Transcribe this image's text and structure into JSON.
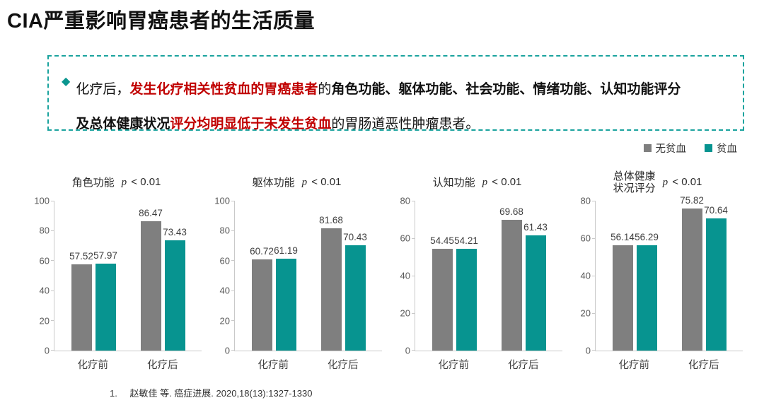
{
  "colors": {
    "gray": "#7f7f7f",
    "teal": "#079490",
    "border_teal": "#1aa39e",
    "red": "#c00000"
  },
  "slide": {
    "title": "CIA严重影响胃癌患者的生活质量",
    "callout": {
      "bullet": "◆",
      "lines": [
        [
          {
            "t": "化疗后，",
            "style": "normal"
          },
          {
            "t": "发生化疗相关性贫血的胃癌患者",
            "style": "red-bold"
          },
          {
            "t": "的",
            "style": "normal"
          },
          {
            "t": "角色功能、躯体功能、社会功能、情绪功能、认知功能评分",
            "style": "bold"
          }
        ],
        [
          {
            "t": "及总体健康状况",
            "style": "bold"
          },
          {
            "t": "评分均明显低于未发生贫血",
            "style": "red-bold"
          },
          {
            "t": "的胃肠道恶性肿瘤患者。",
            "style": "normal"
          }
        ]
      ]
    },
    "legend": [
      {
        "label": "无贫血",
        "color": "#7f7f7f"
      },
      {
        "label": "贫血",
        "color": "#079490"
      }
    ],
    "footnote": {
      "num": "1.",
      "text": "赵敏佳 等. 癌症进展. 2020,18(13):1327-1330"
    }
  },
  "chart_data": [
    {
      "type": "bar",
      "title": "角色功能",
      "p_label": "p < 0.01",
      "categories": [
        "化疗前",
        "化疗后"
      ],
      "series": [
        {
          "name": "无贫血",
          "color": "#7f7f7f",
          "values": [
            57.52,
            86.47
          ]
        },
        {
          "name": "贫血",
          "color": "#079490",
          "values": [
            57.97,
            73.43
          ]
        }
      ],
      "ylim": [
        0,
        100
      ],
      "ytick_step": 20,
      "grid": false,
      "legend_position": "top-right-shared"
    },
    {
      "type": "bar",
      "title": "躯体功能",
      "p_label": "p < 0.01",
      "categories": [
        "化疗前",
        "化疗后"
      ],
      "series": [
        {
          "name": "无贫血",
          "color": "#7f7f7f",
          "values": [
            60.72,
            81.68
          ]
        },
        {
          "name": "贫血",
          "color": "#079490",
          "values": [
            61.19,
            70.43
          ]
        }
      ],
      "ylim": [
        0,
        100
      ],
      "ytick_step": 20,
      "grid": false,
      "legend_position": "top-right-shared"
    },
    {
      "type": "bar",
      "title": "认知功能",
      "p_label": "p < 0.01",
      "categories": [
        "化疗前",
        "化疗后"
      ],
      "series": [
        {
          "name": "无贫血",
          "color": "#7f7f7f",
          "values": [
            54.45,
            69.68
          ]
        },
        {
          "name": "贫血",
          "color": "#079490",
          "values": [
            54.21,
            61.43
          ]
        }
      ],
      "ylim": [
        0,
        80
      ],
      "ytick_step": 20,
      "grid": false,
      "legend_position": "top-right-shared"
    },
    {
      "type": "bar",
      "title": "总体健康",
      "title_line2": "状况评分",
      "p_label": "p < 0.01",
      "categories": [
        "化疗前",
        "化疗后"
      ],
      "series": [
        {
          "name": "无贫血",
          "color": "#7f7f7f",
          "values": [
            56.14,
            75.82
          ]
        },
        {
          "name": "贫血",
          "color": "#079490",
          "values": [
            56.29,
            70.64
          ]
        }
      ],
      "ylim": [
        0,
        80
      ],
      "ytick_step": 20,
      "grid": false,
      "legend_position": "top-right-shared"
    }
  ]
}
